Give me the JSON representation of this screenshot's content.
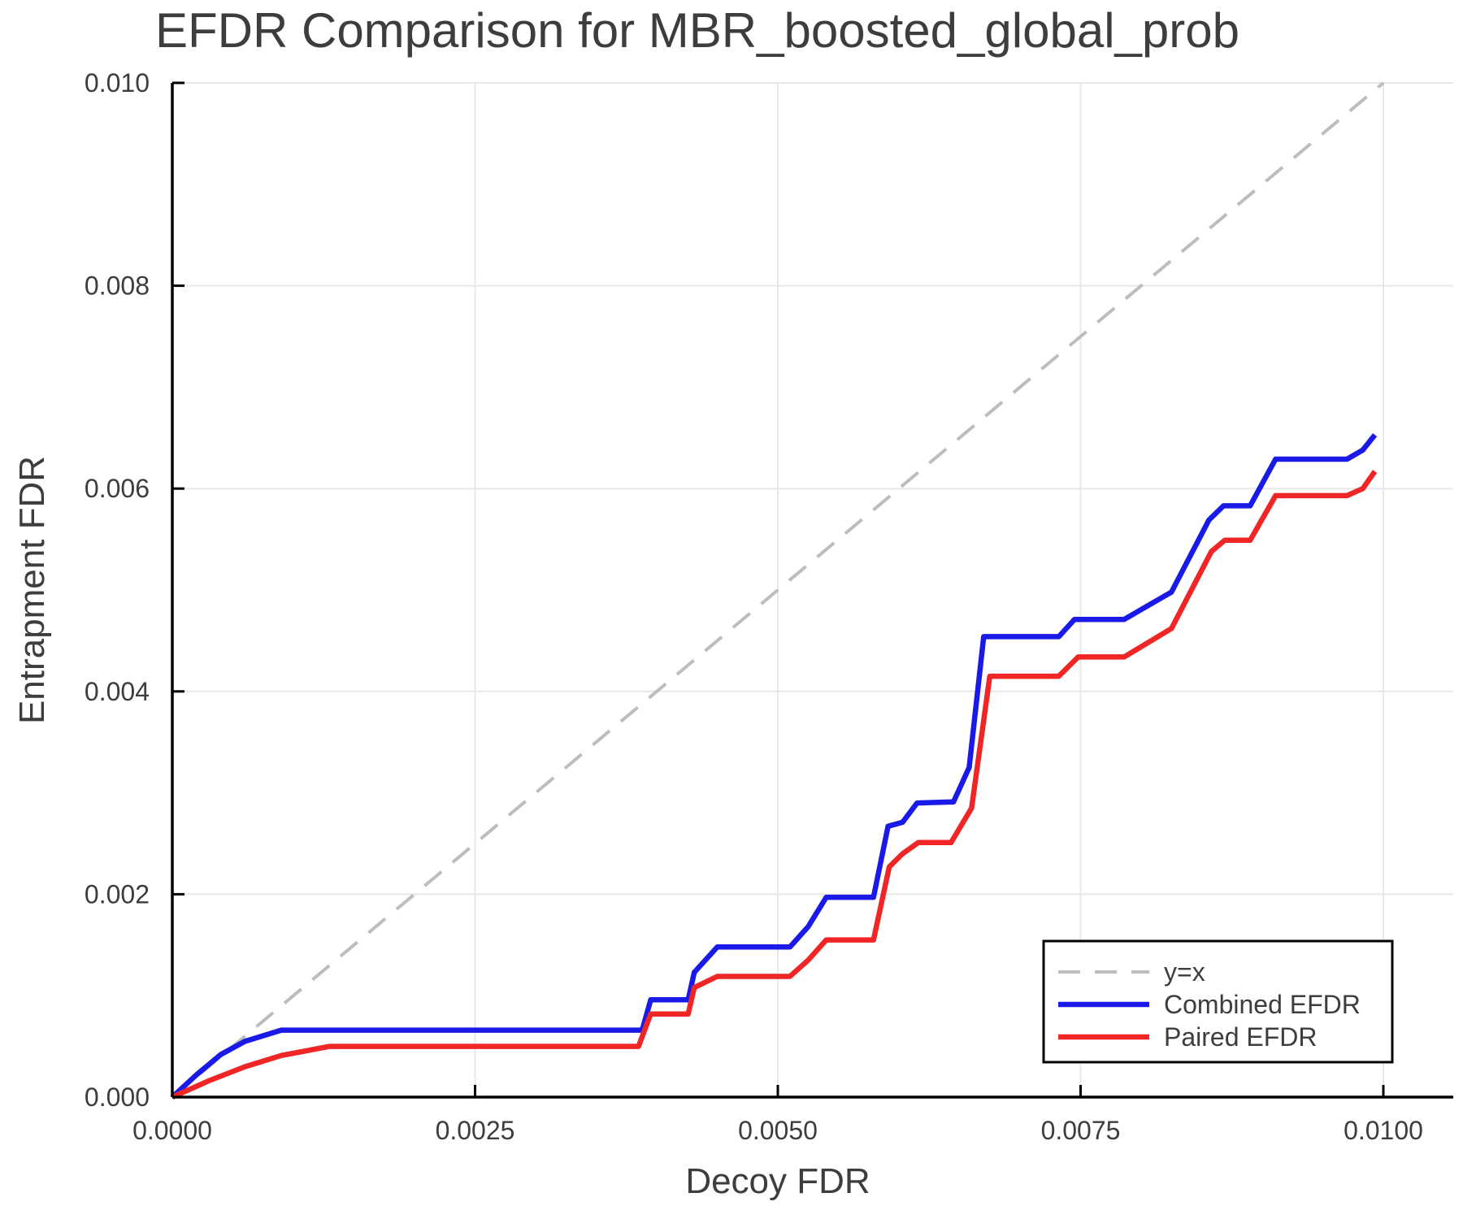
{
  "chart_data": {
    "type": "line",
    "title": "EFDR Comparison for MBR_boosted_global_prob",
    "xlabel": "Decoy FDR",
    "ylabel": "Entrapment FDR",
    "xlim": [
      0.0,
      0.0106
    ],
    "ylim": [
      0.0,
      0.01
    ],
    "grid": true,
    "x_tick_values": [
      0.0,
      0.0025,
      0.005,
      0.0075,
      0.01
    ],
    "x_tick_labels": [
      "0.0000",
      "0.0025",
      "0.0050",
      "0.0075",
      "0.0100"
    ],
    "y_tick_values": [
      0.0,
      0.002,
      0.004,
      0.006,
      0.008,
      0.01
    ],
    "y_tick_labels": [
      "0.000",
      "0.002",
      "0.004",
      "0.006",
      "0.008",
      "0.010"
    ],
    "reference_line": {
      "label": "y=x",
      "from": [
        0.0,
        0.0
      ],
      "to": [
        0.01,
        0.01
      ],
      "dashed": true
    },
    "series": [
      {
        "name": "Combined EFDR",
        "points": [
          [
            0.0,
            0.0
          ],
          [
            0.0002,
            0.00022
          ],
          [
            0.0004,
            0.00042
          ],
          [
            0.0006,
            0.00055
          ],
          [
            0.0009,
            0.00066
          ],
          [
            0.00388,
            0.00066
          ],
          [
            0.00395,
            0.00096
          ],
          [
            0.00426,
            0.00096
          ],
          [
            0.00431,
            0.00123
          ],
          [
            0.0045,
            0.00148
          ],
          [
            0.0051,
            0.00148
          ],
          [
            0.00525,
            0.00168
          ],
          [
            0.0054,
            0.00197
          ],
          [
            0.00579,
            0.00197
          ],
          [
            0.00591,
            0.00267
          ],
          [
            0.00603,
            0.00271
          ],
          [
            0.00615,
            0.0029
          ],
          [
            0.00645,
            0.00291
          ],
          [
            0.00658,
            0.00325
          ],
          [
            0.0067,
            0.00454
          ],
          [
            0.00732,
            0.00454
          ],
          [
            0.00745,
            0.00471
          ],
          [
            0.00786,
            0.00471
          ],
          [
            0.00825,
            0.00498
          ],
          [
            0.00856,
            0.00569
          ],
          [
            0.00868,
            0.00583
          ],
          [
            0.0089,
            0.00583
          ],
          [
            0.00911,
            0.00629
          ],
          [
            0.0097,
            0.00629
          ],
          [
            0.00983,
            0.00638
          ],
          [
            0.00993,
            0.00653
          ]
        ]
      },
      {
        "name": "Paired EFDR",
        "points": [
          [
            0.0,
            0.0
          ],
          [
            0.0003,
            0.00016
          ],
          [
            0.0006,
            0.0003
          ],
          [
            0.0009,
            0.00041
          ],
          [
            0.0013,
            0.0005
          ],
          [
            0.00385,
            0.0005
          ],
          [
            0.00395,
            0.00082
          ],
          [
            0.00426,
            0.00082
          ],
          [
            0.00431,
            0.00108
          ],
          [
            0.0045,
            0.00119
          ],
          [
            0.0051,
            0.00119
          ],
          [
            0.00525,
            0.00135
          ],
          [
            0.0054,
            0.00155
          ],
          [
            0.00579,
            0.00155
          ],
          [
            0.00592,
            0.00227
          ],
          [
            0.00603,
            0.0024
          ],
          [
            0.00616,
            0.00251
          ],
          [
            0.00643,
            0.00251
          ],
          [
            0.0066,
            0.00285
          ],
          [
            0.00675,
            0.00415
          ],
          [
            0.00732,
            0.00415
          ],
          [
            0.00748,
            0.00434
          ],
          [
            0.00786,
            0.00434
          ],
          [
            0.00825,
            0.00462
          ],
          [
            0.00858,
            0.00538
          ],
          [
            0.00869,
            0.00549
          ],
          [
            0.0089,
            0.00549
          ],
          [
            0.00911,
            0.00593
          ],
          [
            0.0097,
            0.00593
          ],
          [
            0.00983,
            0.006
          ],
          [
            0.00993,
            0.00617
          ]
        ]
      }
    ],
    "legend": {
      "position": "bottom-right",
      "entries": [
        {
          "label": "y=x",
          "color": "#bdbdbd",
          "dashed": true
        },
        {
          "label": "Combined EFDR",
          "color": "#1a1ae8",
          "dashed": false
        },
        {
          "label": "Paired EFDR",
          "color": "#f02525",
          "dashed": false
        }
      ]
    },
    "colors": {
      "combined": "#1a1ae8",
      "paired": "#f02525",
      "reference": "#bdbdbd",
      "grid": "#e8e8e8",
      "axis": "#000000",
      "text": "#3d3d3d"
    }
  }
}
